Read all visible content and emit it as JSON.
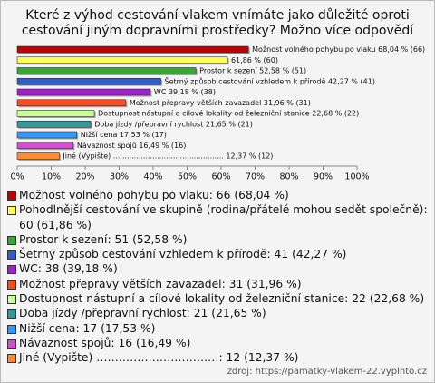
{
  "chart_data": {
    "type": "bar",
    "title": "Které z výhod cestování vlakem vnímáte jako důležité oproti cestování jiným dopravními prostředky? Možno více odpovědí",
    "orientation": "horizontal",
    "values": [
      68.04,
      61.86,
      52.58,
      42.27,
      39.18,
      31.96,
      22.68,
      21.65,
      17.53,
      16.49,
      12.37
    ],
    "value_labels": [
      "Možnost volného pohybu po vlaku 68,04 % (66)",
      "61,86 % (60)",
      "Prostor k sezení 52,58 % (51)",
      "Šetrný způsob cestování vzhledem k přírodě 42,27 % (41)",
      "WC 39,18 % (38)",
      "Možnost přepravy větších zavazadel 31,96 % (31)",
      "Dostupnost nástupní a cílové lokality od železniční stanice 22,68 % (22)",
      "Doba jízdy /přepravní rychlost 21,65 % (21)",
      "Nižší cena 17,53 % (17)",
      "Návaznost spojů 16,49 % (16)",
      "Jiné (Vypište) ................................................ 12,37 % (12)"
    ],
    "legend_labels": [
      "Možnost volného pohybu po vlaku: 66 (68,04 %)",
      "Pohodlnější cestování ve skupině (rodina/přátelé mohou sedět společně): 60 (61,86 %)",
      "Prostor k sezení: 51 (52,58 %)",
      "Šetrný způsob cestování vzhledem k přírodě: 41 (42,27 %)",
      "WC: 38 (39,18 %)",
      "Možnost přepravy větších zavazadel: 31 (31,96 %)",
      "Dostupnost nástupní a cílové lokality od železniční stanice: 22 (22,68 %)",
      "Doba jízdy /přepravní rychlost: 21 (21,65 %)",
      "Nižší cena: 17 (17,53 %)",
      "Návaznost spojů: 16 (16,49 %)",
      "Jiné (Vypište) ……………………………: 12 (12,37 %)"
    ],
    "colors": [
      "#c00000",
      "#ffff55",
      "#33a833",
      "#2e5fc8",
      "#a020d0",
      "#ff4a1c",
      "#c8ff96",
      "#2e9a9a",
      "#3399ff",
      "#d050d0",
      "#ff8c2a"
    ],
    "xlim": [
      0,
      100
    ],
    "xticks": [
      {
        "value": 0,
        "label": "0%"
      },
      {
        "value": 10,
        "label": "10%"
      },
      {
        "value": 20,
        "label": "20%"
      },
      {
        "value": 30,
        "label": "30%"
      },
      {
        "value": 40,
        "label": "40%"
      },
      {
        "value": 50,
        "label": "50%"
      },
      {
        "value": 60,
        "label": "60%"
      },
      {
        "value": 70,
        "label": "70%"
      },
      {
        "value": 80,
        "label": "80%"
      },
      {
        "value": 90,
        "label": "90%"
      },
      {
        "value": 100,
        "label": "100%"
      }
    ],
    "grid": false,
    "source": "zdroj: https://pamatky-vlakem-22.vyplnto.cz"
  }
}
